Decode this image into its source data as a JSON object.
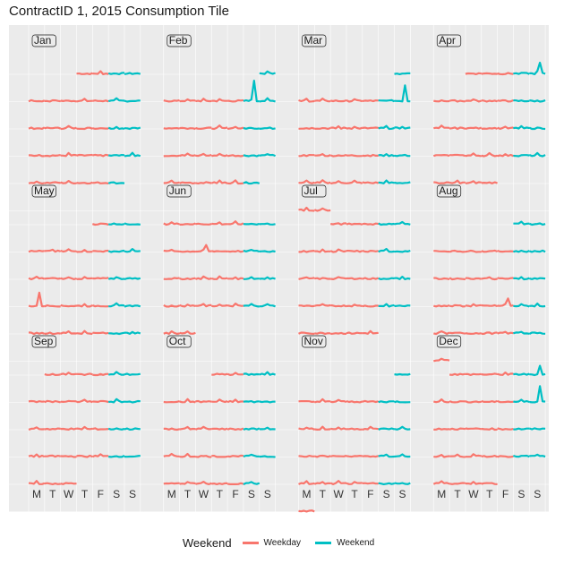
{
  "colors": {
    "weekday": "#F8766D",
    "weekend": "#00BFC4",
    "panel_bg": "#EBEBEB",
    "grid": "#FFFFFF"
  },
  "chart_data": {
    "type": "line",
    "title": "ContractID 1, 2015 Consumption Tile",
    "x_tick_labels": [
      "M",
      "T",
      "W",
      "T",
      "F",
      "S",
      "S"
    ],
    "legend": {
      "title": "Weekend",
      "entries": [
        {
          "label": "Weekday",
          "color": "#F8766D"
        },
        {
          "label": "Weekend",
          "color": "#00BFC4"
        }
      ]
    },
    "year": 2015,
    "description_of_values": "Each facet is a calendar month; each row is a week, each column a weekday (Mon-Sun). Values are approximate daily consumption shape, mostly flat low baseline with occasional spikes.",
    "months": [
      {
        "name": "Jan",
        "first_weekday": 3,
        "days": 31,
        "spikes": []
      },
      {
        "name": "Feb",
        "first_weekday": 6,
        "days": 28,
        "spikes": [
          {
            "day": 7,
            "height": 0.9
          }
        ]
      },
      {
        "name": "Mar",
        "first_weekday": 6,
        "days": 31,
        "spikes": [
          {
            "day": 8,
            "height": 0.7
          }
        ]
      },
      {
        "name": "Apr",
        "first_weekday": 2,
        "days": 30,
        "spikes": [
          {
            "day": 5,
            "height": 0.5
          }
        ]
      },
      {
        "name": "May",
        "first_weekday": 4,
        "days": 31,
        "spikes": [
          {
            "day": 18,
            "height": 0.6
          }
        ]
      },
      {
        "name": "Jun",
        "first_weekday": 0,
        "days": 30,
        "spikes": [
          {
            "day": 10,
            "height": 0.3
          }
        ]
      },
      {
        "name": "Jul",
        "first_weekday": 2,
        "days": 31,
        "spikes": []
      },
      {
        "name": "Aug",
        "first_weekday": 5,
        "days": 31,
        "spikes": [
          {
            "day": 21,
            "height": 0.35
          }
        ]
      },
      {
        "name": "Sep",
        "first_weekday": 1,
        "days": 30,
        "spikes": []
      },
      {
        "name": "Oct",
        "first_weekday": 3,
        "days": 31,
        "spikes": []
      },
      {
        "name": "Nov",
        "first_weekday": 6,
        "days": 30,
        "spikes": []
      },
      {
        "name": "Dec",
        "first_weekday": 1,
        "days": 31,
        "spikes": [
          {
            "day": 6,
            "height": 0.4
          },
          {
            "day": 13,
            "height": 0.7
          }
        ]
      }
    ]
  }
}
